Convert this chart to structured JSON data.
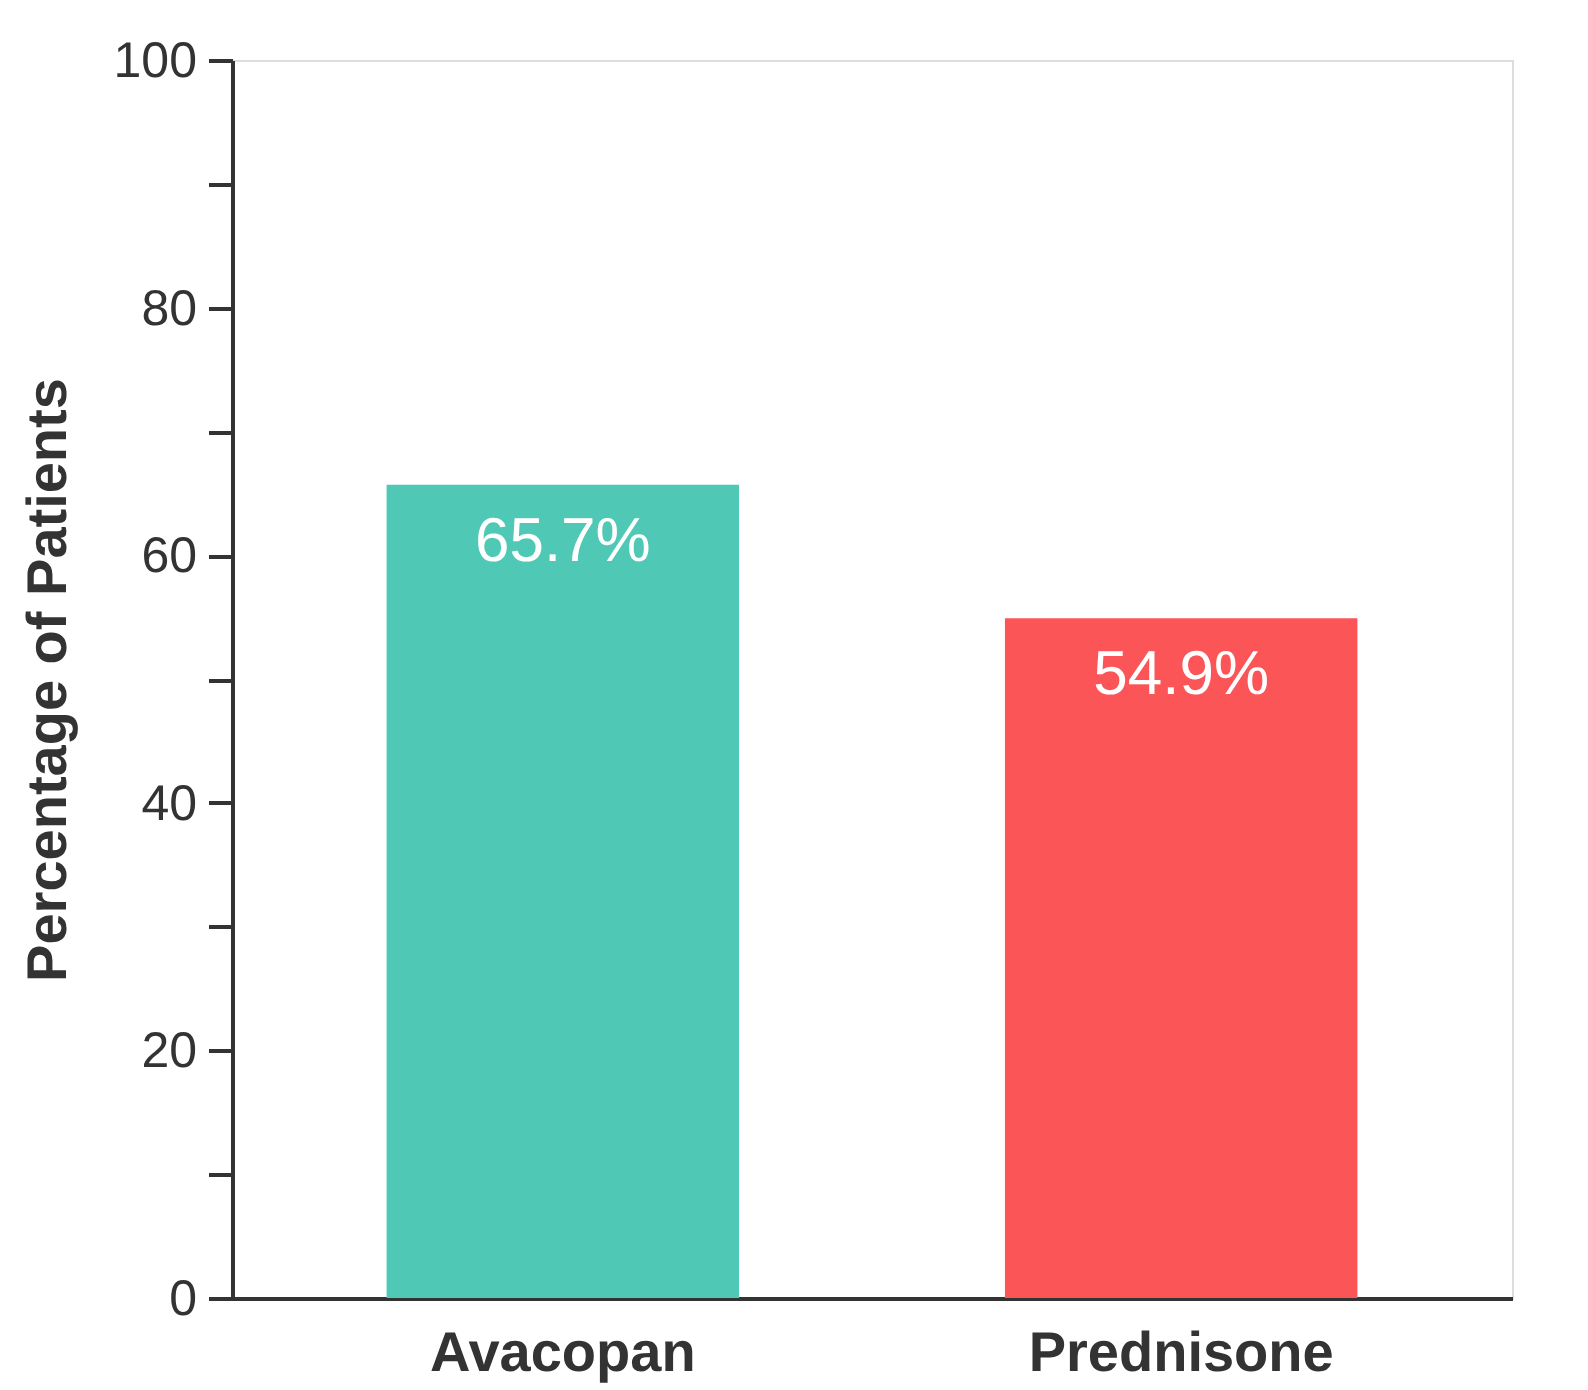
{
  "chart_data": {
    "type": "bar",
    "ylabel": "Percentage of Patients",
    "categories": [
      "Avacopan",
      "Prednisone"
    ],
    "values": [
      65.7,
      54.9
    ],
    "colors": [
      "#4fc8b5",
      "#fb5557"
    ],
    "ylim": [
      0,
      100
    ],
    "yticks": [
      0,
      {
        "value": 10,
        "label": null
      },
      20,
      {
        "value": 30,
        "label": null
      },
      40,
      {
        "value": 50,
        "label": null
      },
      60,
      {
        "value": 70,
        "label": null
      },
      80,
      {
        "value": 90,
        "label": null
      },
      100
    ],
    "value_labels": [
      "65.7%",
      "54.9%"
    ],
    "grid": false,
    "legend": false
  }
}
